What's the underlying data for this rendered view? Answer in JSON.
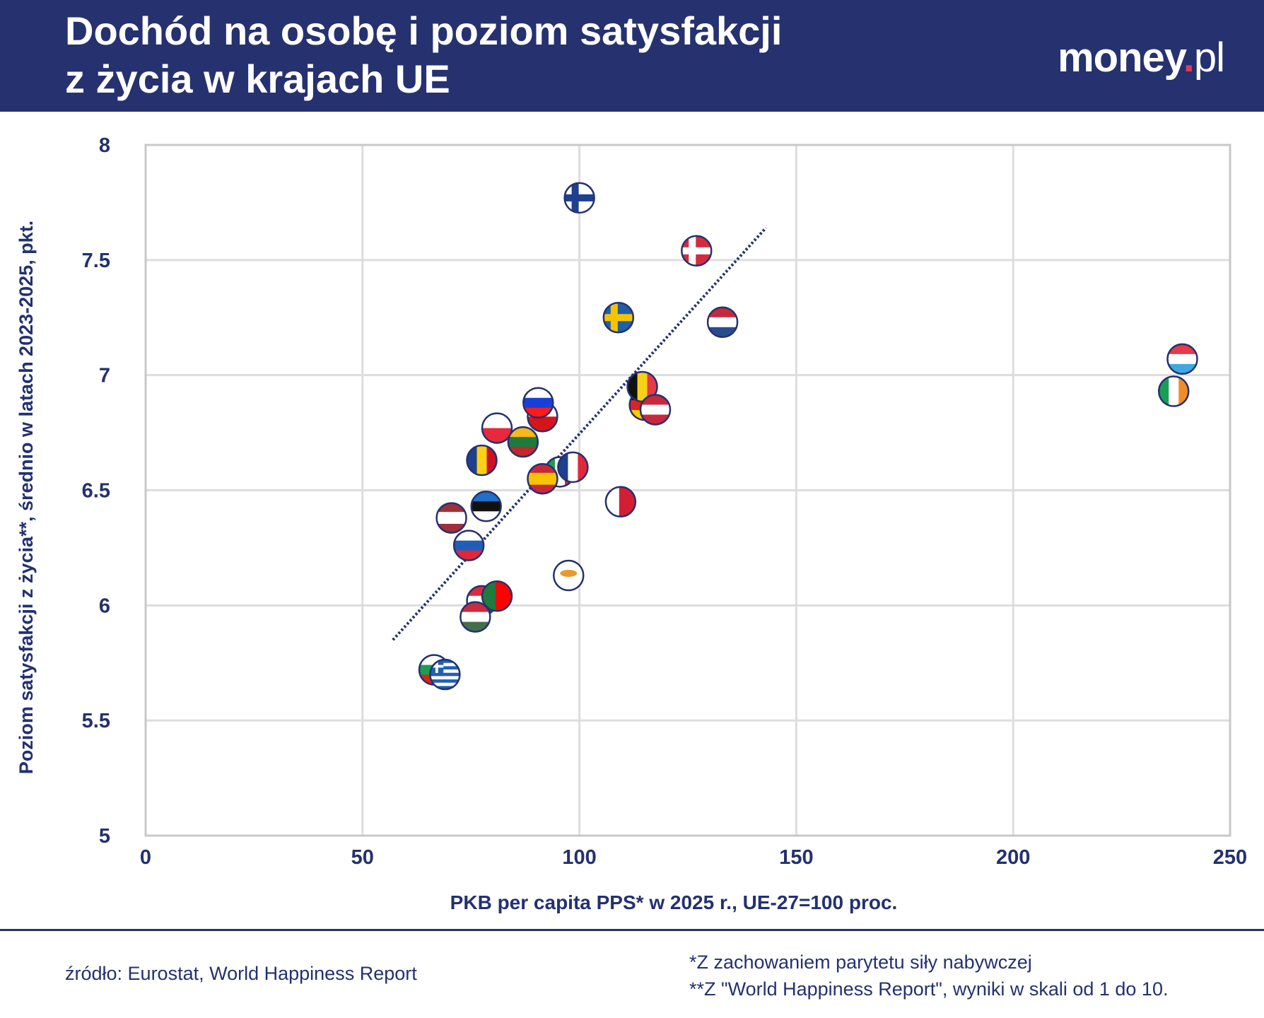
{
  "header": {
    "title_line1": "Dochód na osobę i poziom satysfakcji",
    "title_line2": "z życia w krajach UE",
    "logo": "money.pl"
  },
  "colors": {
    "brand": "#26316f",
    "grid": "#dddddd",
    "trend": "#26316f",
    "logo_dot": "#e8375a"
  },
  "chart_data": {
    "type": "scatter",
    "xlabel": "PKB per capita PPS* w 2025 r., UE-27=100 proc.",
    "ylabel": "Poziom satysfakcji z życia**, średnio w latach 2023-2025, pkt.",
    "xlim": [
      0,
      250
    ],
    "ylim": [
      5,
      8
    ],
    "xticks": [
      "0",
      "50",
      "100",
      "150",
      "200",
      "250"
    ],
    "yticks": [
      "5",
      "5.5",
      "6",
      "6.5",
      "7",
      "7.5",
      "8"
    ],
    "grid": true,
    "marker": "country-flag",
    "trendline": {
      "x": [
        57,
        143
      ],
      "y": [
        5.85,
        7.64
      ]
    },
    "points": [
      {
        "country": "FI",
        "x": 100,
        "y": 7.77,
        "flag": {
          "type": "nordic",
          "colors": [
            "#ffffff",
            "#1f3f8f"
          ]
        }
      },
      {
        "country": "DK",
        "x": 127,
        "y": 7.54,
        "flag": {
          "type": "nordic",
          "colors": [
            "#d52b3f",
            "#ffffff"
          ]
        }
      },
      {
        "country": "SE",
        "x": 109,
        "y": 7.25,
        "flag": {
          "type": "nordic",
          "colors": [
            "#1f5fa8",
            "#f5c400"
          ]
        }
      },
      {
        "country": "NL",
        "x": 133,
        "y": 7.23,
        "flag": {
          "type": "h",
          "colors": [
            "#c8283c",
            "#ffffff",
            "#2a4c8f"
          ]
        }
      },
      {
        "country": "LU",
        "x": 239,
        "y": 7.07,
        "flag": {
          "type": "h",
          "colors": [
            "#e8394a",
            "#ffffff",
            "#3fa8e0"
          ]
        }
      },
      {
        "country": "IE",
        "x": 237,
        "y": 6.93,
        "flag": {
          "type": "v",
          "colors": [
            "#1a9e55",
            "#ffffff",
            "#f28c28"
          ]
        }
      },
      {
        "country": "DE",
        "x": 115,
        "y": 6.87,
        "flag": {
          "type": "h",
          "colors": [
            "#111111",
            "#dd2222",
            "#ffcc00"
          ]
        }
      },
      {
        "country": "BE",
        "x": 114.5,
        "y": 6.95,
        "flag": {
          "type": "v",
          "colors": [
            "#111111",
            "#f7d117",
            "#e8394a"
          ]
        }
      },
      {
        "country": "AT",
        "x": 117.5,
        "y": 6.85,
        "flag": {
          "type": "h",
          "colors": [
            "#c8283c",
            "#ffffff",
            "#c8283c"
          ]
        }
      },
      {
        "country": "CZ",
        "x": 91.5,
        "y": 6.82,
        "flag": {
          "type": "h",
          "colors": [
            "#ffffff",
            "#d7141a"
          ]
        }
      },
      {
        "country": "SI",
        "x": 90.5,
        "y": 6.88,
        "flag": {
          "type": "h",
          "colors": [
            "#ffffff",
            "#1a3fd6",
            "#ff1a1a"
          ]
        }
      },
      {
        "country": "PL",
        "x": 81,
        "y": 6.77,
        "flag": {
          "type": "h",
          "colors": [
            "#ffffff",
            "#e8283c"
          ]
        }
      },
      {
        "country": "LT",
        "x": 87,
        "y": 6.71,
        "flag": {
          "type": "h",
          "colors": [
            "#f7b818",
            "#1f7a3e",
            "#c1272d"
          ]
        }
      },
      {
        "country": "RO",
        "x": 77.5,
        "y": 6.63,
        "flag": {
          "type": "v",
          "colors": [
            "#1f3f8f",
            "#fcd116",
            "#ce1126"
          ]
        }
      },
      {
        "country": "IT",
        "x": 95.5,
        "y": 6.58,
        "flag": {
          "type": "v",
          "colors": [
            "#1a9e55",
            "#ffffff",
            "#ce2b37"
          ]
        }
      },
      {
        "country": "FR",
        "x": 98.5,
        "y": 6.6,
        "flag": {
          "type": "v",
          "colors": [
            "#1f3f8f",
            "#ffffff",
            "#e0283c"
          ]
        }
      },
      {
        "country": "ES",
        "x": 91.5,
        "y": 6.55,
        "flag": {
          "type": "h3",
          "colors": [
            "#c8283c",
            "#f7c400",
            "#c8283c"
          ]
        }
      },
      {
        "country": "MT",
        "x": 109.5,
        "y": 6.45,
        "flag": {
          "type": "v2",
          "colors": [
            "#ffffff",
            "#d21f34"
          ]
        }
      },
      {
        "country": "EE",
        "x": 78.5,
        "y": 6.43,
        "flag": {
          "type": "h",
          "colors": [
            "#1f70c8",
            "#111111",
            "#ffffff"
          ]
        }
      },
      {
        "country": "LV",
        "x": 70.5,
        "y": 6.38,
        "flag": {
          "type": "h3",
          "colors": [
            "#9e3039",
            "#ffffff",
            "#9e3039"
          ]
        }
      },
      {
        "country": "SK",
        "x": 74.5,
        "y": 6.26,
        "flag": {
          "type": "h",
          "colors": [
            "#ffffff",
            "#1f5fb8",
            "#e0283c"
          ]
        }
      },
      {
        "country": "CY",
        "x": 97.5,
        "y": 6.13,
        "flag": {
          "type": "cy",
          "colors": [
            "#ffffff",
            "#e89a30"
          ]
        }
      },
      {
        "country": "HR",
        "x": 77.5,
        "y": 6.02,
        "flag": {
          "type": "h",
          "colors": [
            "#e0283c",
            "#ffffff",
            "#1f3fa8"
          ]
        }
      },
      {
        "country": "PT",
        "x": 81,
        "y": 6.04,
        "flag": {
          "type": "v2",
          "colors": [
            "#1f7a3e",
            "#ff0000"
          ]
        }
      },
      {
        "country": "HU",
        "x": 76,
        "y": 5.95,
        "flag": {
          "type": "h",
          "colors": [
            "#cd2a3e",
            "#ffffff",
            "#436f4d"
          ]
        }
      },
      {
        "country": "BG",
        "x": 66.5,
        "y": 5.72,
        "flag": {
          "type": "h",
          "colors": [
            "#ffffff",
            "#1a9e55",
            "#d62612"
          ]
        }
      },
      {
        "country": "GR",
        "x": 69,
        "y": 5.7,
        "flag": {
          "type": "gr",
          "colors": [
            "#1f5fb8",
            "#ffffff"
          ]
        }
      }
    ]
  },
  "footer": {
    "source": "źródło: Eurostat, World Happiness Report",
    "note1": "*Z zachowaniem parytetu siły nabywczej",
    "note2": "**Z \"World Happiness Report\", wyniki w skali od 1 do 10."
  }
}
